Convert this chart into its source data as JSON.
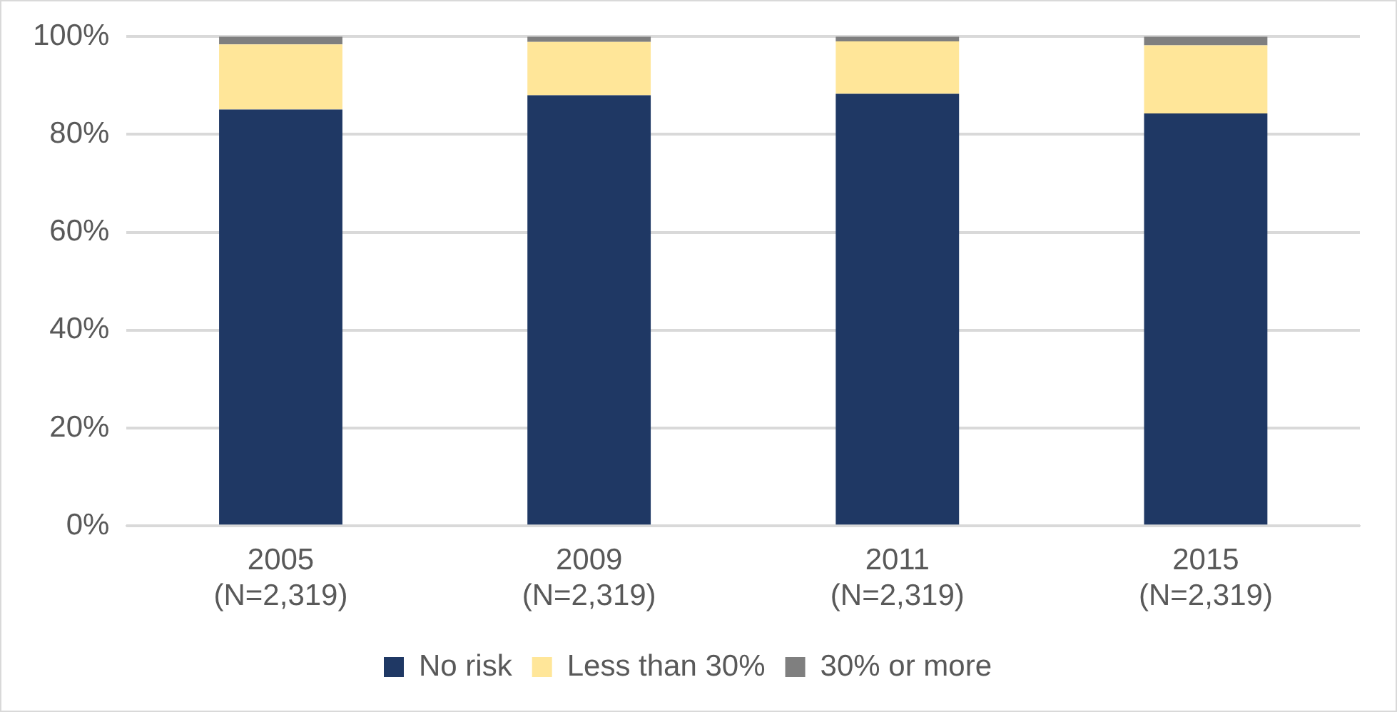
{
  "chart_data": {
    "type": "bar",
    "stacked": true,
    "categories": [
      "2005\n(N=2,319)",
      "2009\n(N=2,319)",
      "2011\n(N=2,319)",
      "2015\n(N=2,319)"
    ],
    "series": [
      {
        "name": "No risk",
        "color": "#1f3864",
        "values": [
          85.1,
          88.0,
          88.3,
          84.3
        ]
      },
      {
        "name": "Less than 30%",
        "color": "#ffe699",
        "values": [
          13.3,
          10.9,
          10.7,
          13.9
        ]
      },
      {
        "name": "30% or more",
        "color": "#7f7f7f",
        "values": [
          1.6,
          1.1,
          1.0,
          1.8
        ]
      }
    ],
    "ylim": [
      0,
      100
    ],
    "yticks": [
      {
        "value": 0,
        "label": "0%"
      },
      {
        "value": 20,
        "label": "20%"
      },
      {
        "value": 40,
        "label": "40%"
      },
      {
        "value": 60,
        "label": "60%"
      },
      {
        "value": 80,
        "label": "80%"
      },
      {
        "value": 100,
        "label": "100%"
      }
    ],
    "grid": "y",
    "legend": "bottom"
  }
}
